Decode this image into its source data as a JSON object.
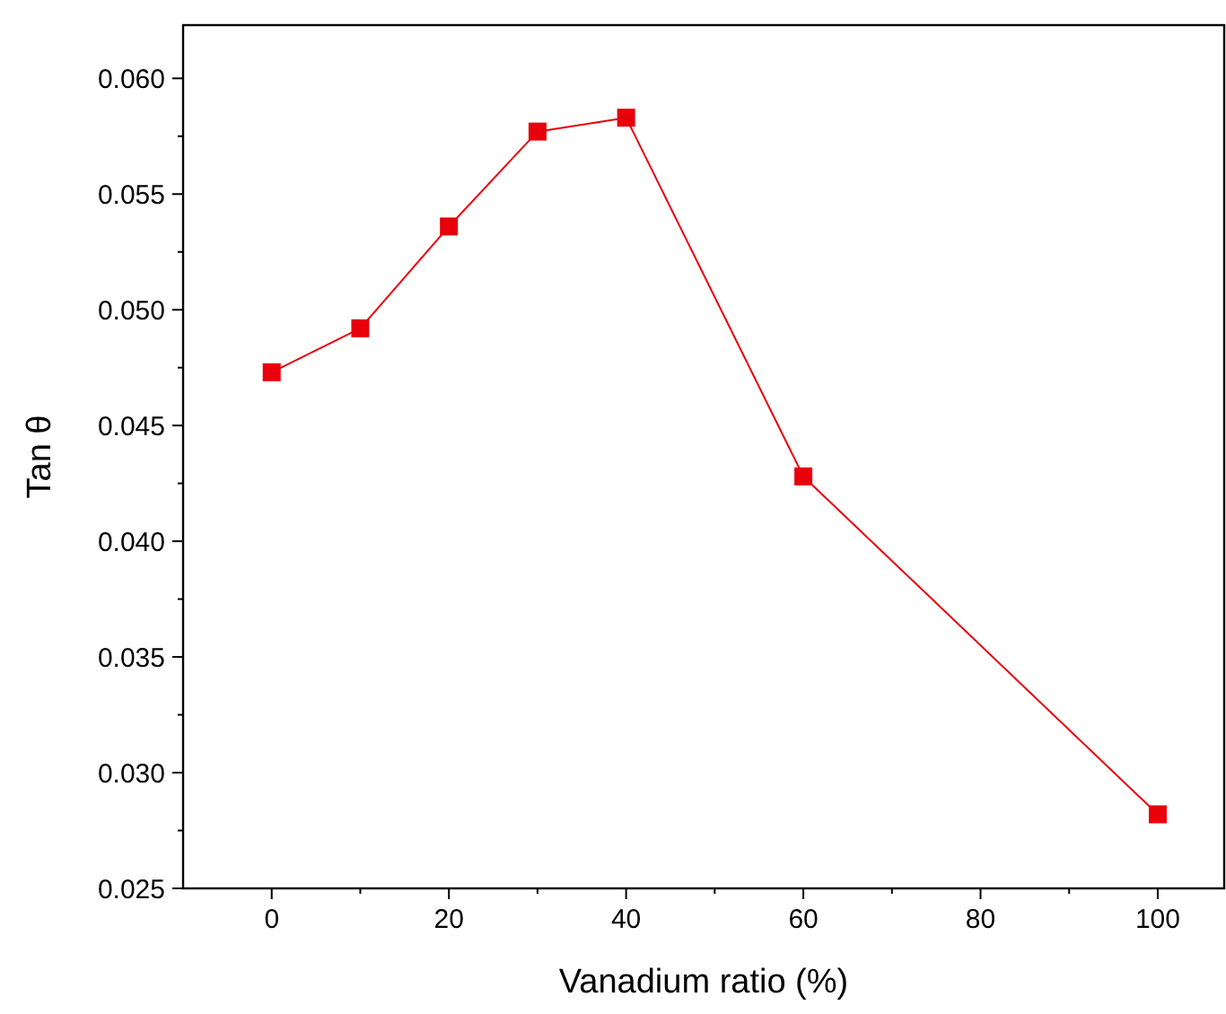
{
  "chart_data": {
    "type": "line",
    "xlabel": "Vanadium ratio (%)",
    "ylabel": "Tan θ",
    "x": [
      0,
      10,
      20,
      30,
      40,
      60,
      100
    ],
    "series": [
      {
        "color": "#e8000b",
        "values": [
          0.0473,
          0.0492,
          0.0536,
          0.0577,
          0.0583,
          0.0428,
          0.0282
        ]
      }
    ],
    "xlim": [
      -10,
      107.5
    ],
    "xticks": [
      0,
      20,
      40,
      60,
      80,
      100
    ],
    "ylim": [
      0.025,
      0.0623
    ],
    "yticks": [
      {
        "value": 0.025,
        "label": "0.025"
      },
      {
        "value": 0.03,
        "label": "0.030"
      },
      {
        "value": 0.035,
        "label": "0.035"
      },
      {
        "value": 0.04,
        "label": "0.040"
      },
      {
        "value": 0.045,
        "label": "0.045"
      },
      {
        "value": 0.05,
        "label": "0.050"
      },
      {
        "value": 0.055,
        "label": "0.055"
      },
      {
        "value": 0.06,
        "label": "0.060"
      }
    ],
    "marker": "square",
    "line_style": "solid"
  }
}
